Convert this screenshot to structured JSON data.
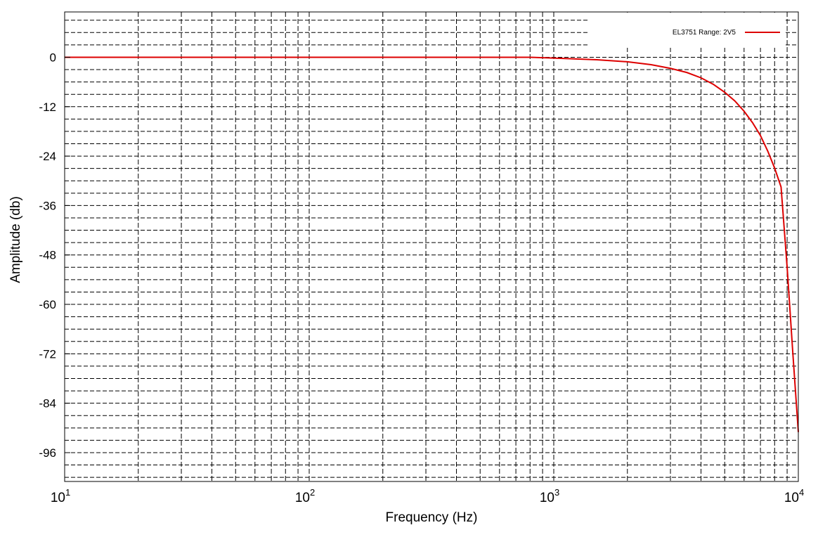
{
  "chart_data": {
    "type": "line",
    "title": "",
    "xlabel": "Frequency (Hz)",
    "ylabel": "Amplitude (db)",
    "x_scale": "log",
    "xlim": [
      10,
      10000
    ],
    "ylim": [
      -103,
      11
    ],
    "grid": true,
    "legend": "top-right",
    "x_ticks": [
      {
        "value": 10,
        "base": "10",
        "exp": "1"
      },
      {
        "value": 100,
        "base": "10",
        "exp": "2"
      },
      {
        "value": 1000,
        "base": "10",
        "exp": "3"
      },
      {
        "value": 10000,
        "base": "10",
        "exp": "4"
      }
    ],
    "y_ticks": [
      {
        "value": 0,
        "label": "0"
      },
      {
        "value": -12,
        "label": "-12"
      },
      {
        "value": -24,
        "label": "-24"
      },
      {
        "value": -36,
        "label": "-36"
      },
      {
        "value": -48,
        "label": "-48"
      },
      {
        "value": -60,
        "label": "-60"
      },
      {
        "value": -72,
        "label": "-72"
      },
      {
        "value": -84,
        "label": "-84"
      },
      {
        "value": -96,
        "label": "-96"
      }
    ],
    "series": [
      {
        "name": "EL3751 Range: 2V5",
        "color": "#dd0000",
        "x": [
          10,
          100,
          300,
          600,
          800,
          1000,
          1500,
          2000,
          2500,
          3000,
          3500,
          4000,
          4500,
          5000,
          5500,
          6000,
          6500,
          7000,
          7500,
          8000,
          8500,
          9000,
          9500,
          10000
        ],
        "y": [
          0,
          0,
          0,
          0,
          0,
          -0.2,
          -0.6,
          -1.1,
          -1.8,
          -2.7,
          -3.7,
          -5.0,
          -6.6,
          -8.5,
          -10.6,
          -13.1,
          -15.9,
          -19.0,
          -22.8,
          -26.9,
          -31.5,
          -51.0,
          -72.0,
          -91.0
        ]
      }
    ]
  }
}
